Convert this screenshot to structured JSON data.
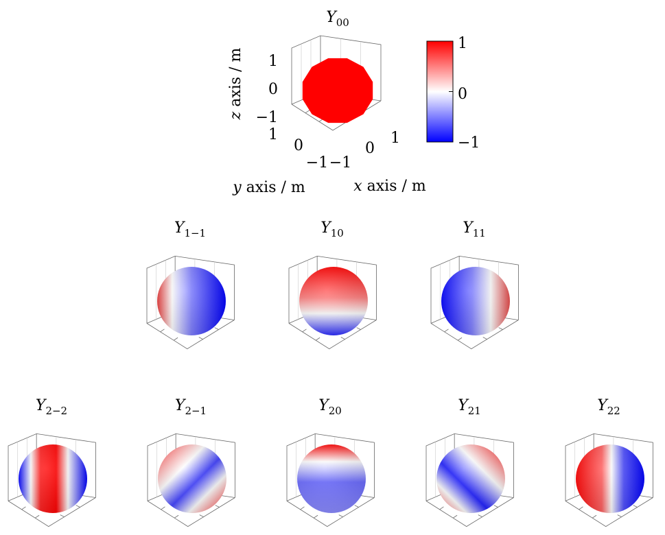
{
  "figure": {
    "top_plot": {
      "title_base": "Y",
      "title_sub": "00",
      "z_ticks": [
        "1",
        "0",
        "−1"
      ],
      "y_ticks": [
        "1",
        "0",
        "−1"
      ],
      "x_ticks": [
        "−1",
        "0",
        "1"
      ],
      "z_label_var": "z",
      "z_label_rest": " axis / m",
      "y_label_var": "y",
      "y_label_rest": " axis / m",
      "x_label_var": "x",
      "x_label_rest": " axis / m"
    },
    "colorbar": {
      "ticks": [
        "1",
        "0",
        "−1"
      ],
      "colors": {
        "max": "#ff0000",
        "mid": "#ffffff",
        "min": "#0000ff"
      }
    },
    "row1": [
      {
        "base": "Y",
        "sub": "1−1",
        "pattern": "y"
      },
      {
        "base": "Y",
        "sub": "10",
        "pattern": "z"
      },
      {
        "base": "Y",
        "sub": "11",
        "pattern": "x"
      }
    ],
    "row2": [
      {
        "base": "Y",
        "sub": "2−2",
        "pattern": "xy"
      },
      {
        "base": "Y",
        "sub": "2−1",
        "pattern": "yz"
      },
      {
        "base": "Y",
        "sub": "20",
        "pattern": "z2"
      },
      {
        "base": "Y",
        "sub": "21",
        "pattern": "xz"
      },
      {
        "base": "Y",
        "sub": "22",
        "pattern": "x2y2"
      }
    ]
  }
}
